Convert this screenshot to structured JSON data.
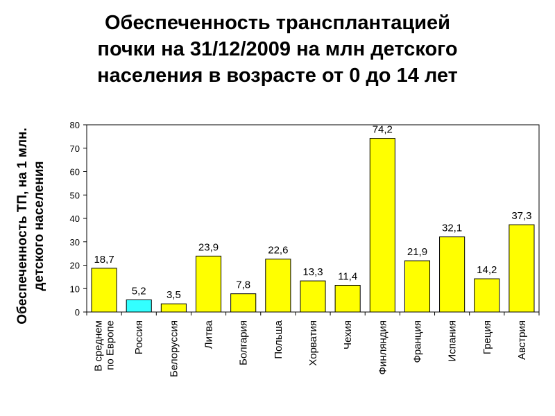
{
  "chart_data": {
    "type": "bar",
    "title_lines": [
      "Обеспеченность трансплантацией",
      "почки на 31/12/2009 на млн детского",
      "населения в возрасте от 0 до 14 лет"
    ],
    "ylabel_lines": [
      "Обеспеченность ТП, на 1 млн.",
      "детского населения"
    ],
    "xlabel": "",
    "ylim": [
      0,
      80
    ],
    "yticks": [
      0,
      10,
      20,
      30,
      40,
      50,
      60,
      70,
      80
    ],
    "categories": [
      [
        "В среднем",
        "по Европе"
      ],
      [
        "Россия"
      ],
      [
        "Белоруссия"
      ],
      [
        "Литва"
      ],
      [
        "Болгария"
      ],
      [
        "Польша"
      ],
      [
        "Хорватия"
      ],
      [
        "Чехия"
      ],
      [
        "Финляндия"
      ],
      [
        "Франция"
      ],
      [
        "Испания"
      ],
      [
        "Греция"
      ],
      [
        "Австрия"
      ]
    ],
    "values": [
      18.7,
      5.2,
      3.5,
      23.9,
      7.8,
      22.6,
      13.3,
      11.4,
      74.2,
      21.9,
      32.1,
      14.2,
      37.3
    ],
    "value_labels": [
      "18,7",
      "5,2",
      "3,5",
      "23,9",
      "7,8",
      "22,6",
      "13,3",
      "11,4",
      "74,2",
      "21,9",
      "32,1",
      "14,2",
      "37,3"
    ],
    "colors": {
      "bar": "#ffff00",
      "highlight": "#33ffff",
      "outline": "#000000"
    },
    "highlight_index": 1,
    "grid": false,
    "legend": "none"
  }
}
